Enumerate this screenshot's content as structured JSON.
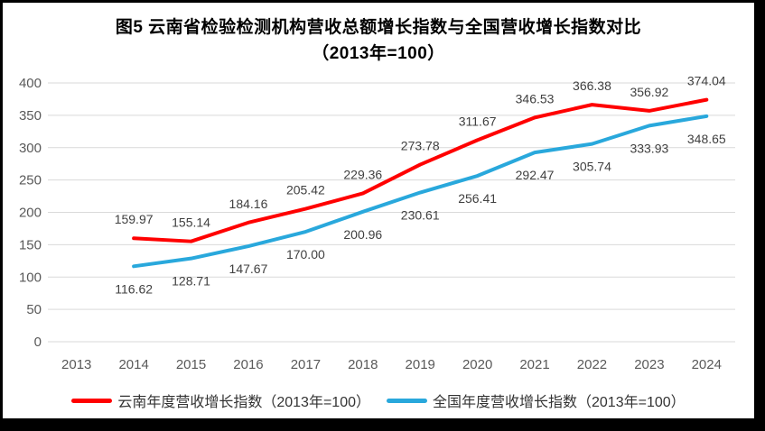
{
  "title": {
    "line1": "图5  云南省检验检测机构营收总额增长指数与全国营收增长指数对比",
    "line2": "（2013年=100）"
  },
  "chart_data": {
    "type": "line",
    "title": "图5 云南省检验检测机构营收总额增长指数与全国营收增长指数对比（2013年=100）",
    "categories": [
      "2013",
      "2014",
      "2015",
      "2016",
      "2017",
      "2018",
      "2019",
      "2020",
      "2021",
      "2022",
      "2023",
      "2024"
    ],
    "series": [
      {
        "name": "云南年度营收增长指数（2013年=100）",
        "color": "#ff0000",
        "label_position": "above",
        "values": [
          null,
          159.97,
          155.14,
          184.16,
          205.42,
          229.36,
          273.78,
          311.67,
          346.53,
          366.38,
          356.92,
          374.04
        ]
      },
      {
        "name": "全国年度营收增长指数（2013年=100）",
        "color": "#29a8dc",
        "label_position": "below",
        "values": [
          null,
          116.62,
          128.71,
          147.67,
          170.0,
          200.96,
          230.61,
          256.41,
          292.47,
          305.74,
          333.93,
          348.65
        ]
      }
    ],
    "ylim": [
      0,
      400
    ],
    "ytick_step": 50,
    "yticks": [
      "0",
      "50",
      "100",
      "150",
      "200",
      "250",
      "300",
      "350",
      "400"
    ],
    "grid": true,
    "gridline_color": "#d9d9d9",
    "axis_label_color": "#595959",
    "data_label_color": "#404040",
    "data_label_decimals": 2,
    "legend_position": "bottom"
  },
  "legend": {
    "items": [
      {
        "label": "云南年度营收增长指数（2013年=100）",
        "color": "#ff0000"
      },
      {
        "label": "全国年度营收增长指数（2013年=100）",
        "color": "#29a8dc"
      }
    ]
  }
}
